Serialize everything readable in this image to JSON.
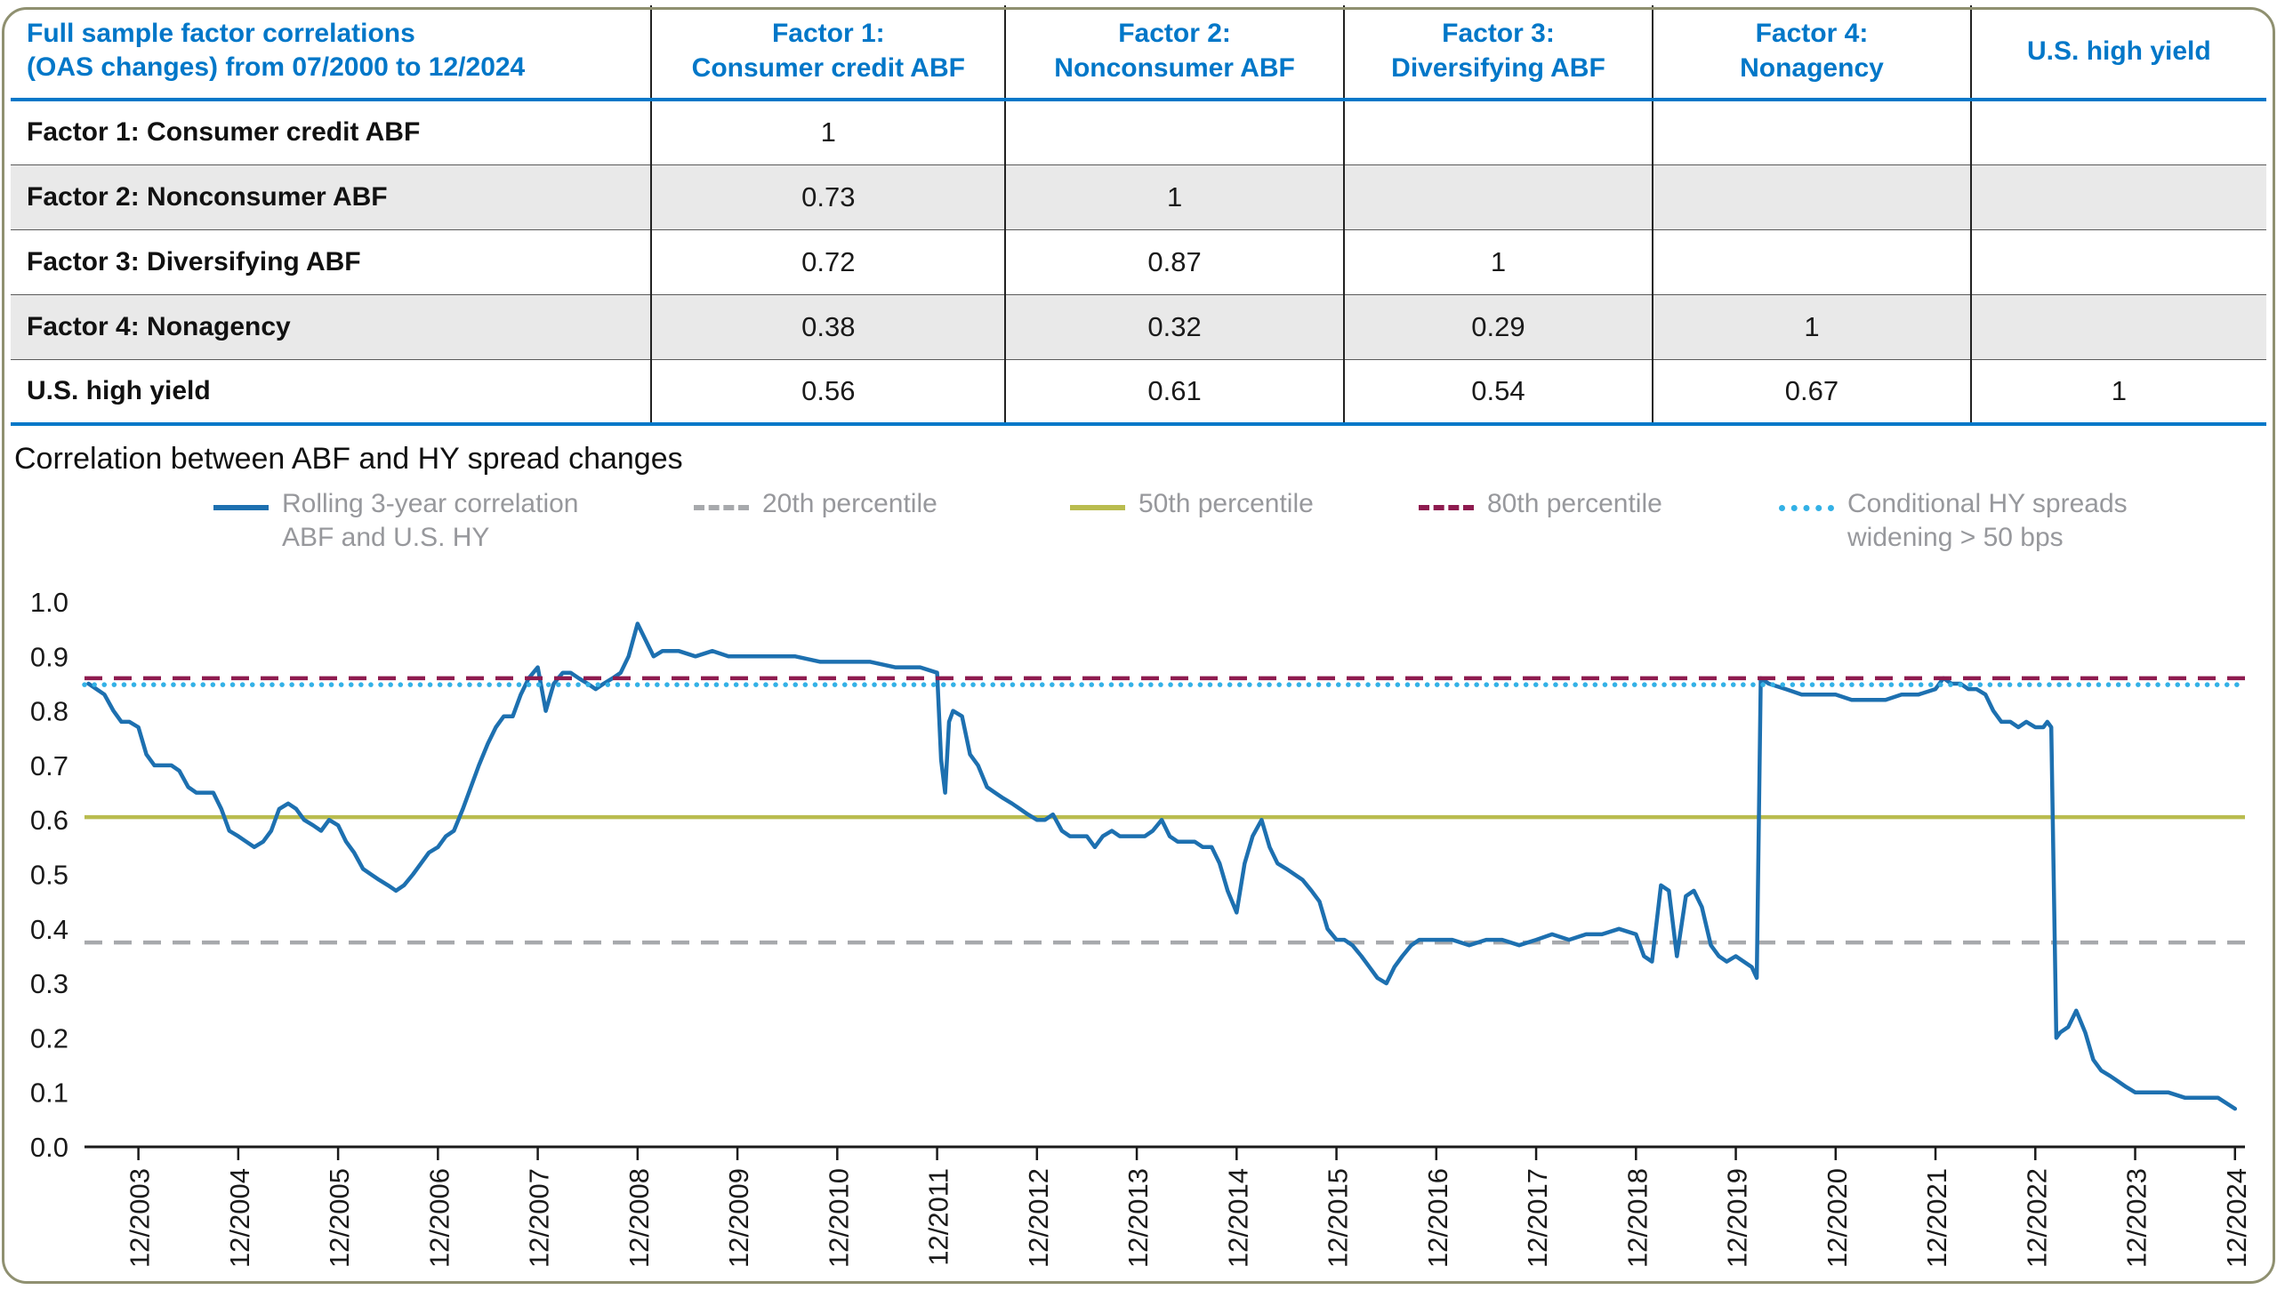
{
  "table": {
    "title_lines": [
      "Full sample factor correlations",
      "(OAS changes) from 07/2000 to 12/2024"
    ],
    "col_headers": [
      [
        "Factor 1:",
        "Consumer credit ABF"
      ],
      [
        "Factor 2:",
        "Nonconsumer ABF"
      ],
      [
        "Factor 3:",
        "Diversifying ABF"
      ],
      [
        "Factor 4:",
        "Nonagency"
      ],
      [
        "U.S. high yield"
      ]
    ],
    "rows": [
      {
        "label": "Factor 1: Consumer credit ABF",
        "values": [
          "1",
          "",
          "",
          "",
          ""
        ]
      },
      {
        "label": "Factor 2: Nonconsumer ABF",
        "values": [
          "0.73",
          "1",
          "",
          "",
          ""
        ]
      },
      {
        "label": "Factor 3: Diversifying ABF",
        "values": [
          "0.72",
          "0.87",
          "1",
          "",
          ""
        ]
      },
      {
        "label": "Factor 4: Nonagency",
        "values": [
          "0.38",
          "0.32",
          "0.29",
          "1",
          ""
        ]
      },
      {
        "label": "U.S. high yield",
        "values": [
          "0.56",
          "0.61",
          "0.54",
          "0.67",
          "1"
        ]
      }
    ],
    "header_text_color": "#0077C8",
    "alt_row_color": "#e9e9e9"
  },
  "legend": [
    {
      "label_lines": [
        "Rolling 3-year correlation",
        "ABF and U.S. HY"
      ],
      "style": "solid",
      "color": "#1d70b0"
    },
    {
      "label_lines": [
        "20th percentile"
      ],
      "style": "dashed",
      "color": "#a7a9ac"
    },
    {
      "label_lines": [
        "50th percentile"
      ],
      "style": "solid",
      "color": "#b9bc4f"
    },
    {
      "label_lines": [
        "80th percentile"
      ],
      "style": "dashed",
      "color": "#8e1b4f"
    },
    {
      "label_lines": [
        "Conditional HY spreads",
        "widening > 50 bps"
      ],
      "style": "dotted",
      "color": "#33b1e6"
    }
  ],
  "chart_data": {
    "type": "line",
    "title": "Correlation between ABF and HY spread changes",
    "xlabel": "",
    "ylabel": "",
    "ylim": [
      0,
      1
    ],
    "grid": false,
    "legend_position": "top",
    "y_tick_labels": [
      "0.0",
      "0.1",
      "0.2",
      "0.3",
      "0.4",
      "0.5",
      "0.6",
      "0.7",
      "0.8",
      "0.9",
      "1.0"
    ],
    "x_tick_labels": [
      "12/2003",
      "12/2004",
      "12/2005",
      "12/2006",
      "12/2007",
      "12/2008",
      "12/2009",
      "12/2010",
      "12/2011",
      "12/2012",
      "12/2013",
      "12/2014",
      "12/2015",
      "12/2016",
      "12/2017",
      "12/2018",
      "12/2019",
      "12/2020",
      "12/2021",
      "12/2022",
      "12/2023",
      "12/2024"
    ],
    "ref_lines": [
      {
        "name": "20th percentile",
        "value": 0.375,
        "style": "dashed",
        "color": "#a7a9ac"
      },
      {
        "name": "50th percentile",
        "value": 0.605,
        "style": "solid",
        "color": "#b9bc4f"
      },
      {
        "name": "80th percentile",
        "value": 0.86,
        "style": "dashed",
        "color": "#8e1b4f"
      },
      {
        "name": "Conditional HY spreads widening > 50 bps",
        "value": 0.848,
        "style": "dotted",
        "color": "#33b1e6"
      }
    ],
    "series": [
      {
        "name": "Rolling 3-year correlation ABF and U.S. HY",
        "color": "#1d70b0",
        "points": [
          [
            2003.42,
            0.85
          ],
          [
            2003.5,
            0.84
          ],
          [
            2003.58,
            0.83
          ],
          [
            2003.67,
            0.8
          ],
          [
            2003.75,
            0.78
          ],
          [
            2003.83,
            0.78
          ],
          [
            2003.92,
            0.77
          ],
          [
            2004.0,
            0.72
          ],
          [
            2004.08,
            0.7
          ],
          [
            2004.17,
            0.7
          ],
          [
            2004.25,
            0.7
          ],
          [
            2004.33,
            0.69
          ],
          [
            2004.42,
            0.66
          ],
          [
            2004.5,
            0.65
          ],
          [
            2004.58,
            0.65
          ],
          [
            2004.67,
            0.65
          ],
          [
            2004.75,
            0.62
          ],
          [
            2004.83,
            0.58
          ],
          [
            2004.92,
            0.57
          ],
          [
            2005.0,
            0.56
          ],
          [
            2005.08,
            0.55
          ],
          [
            2005.17,
            0.56
          ],
          [
            2005.25,
            0.58
          ],
          [
            2005.33,
            0.62
          ],
          [
            2005.42,
            0.63
          ],
          [
            2005.5,
            0.62
          ],
          [
            2005.58,
            0.6
          ],
          [
            2005.67,
            0.59
          ],
          [
            2005.75,
            0.58
          ],
          [
            2005.83,
            0.6
          ],
          [
            2005.92,
            0.59
          ],
          [
            2006.0,
            0.56
          ],
          [
            2006.08,
            0.54
          ],
          [
            2006.17,
            0.51
          ],
          [
            2006.25,
            0.5
          ],
          [
            2006.33,
            0.49
          ],
          [
            2006.42,
            0.48
          ],
          [
            2006.5,
            0.47
          ],
          [
            2006.58,
            0.48
          ],
          [
            2006.67,
            0.5
          ],
          [
            2006.75,
            0.52
          ],
          [
            2006.83,
            0.54
          ],
          [
            2006.92,
            0.55
          ],
          [
            2007.0,
            0.57
          ],
          [
            2007.08,
            0.58
          ],
          [
            2007.17,
            0.62
          ],
          [
            2007.25,
            0.66
          ],
          [
            2007.33,
            0.7
          ],
          [
            2007.42,
            0.74
          ],
          [
            2007.5,
            0.77
          ],
          [
            2007.58,
            0.79
          ],
          [
            2007.67,
            0.79
          ],
          [
            2007.75,
            0.83
          ],
          [
            2007.83,
            0.86
          ],
          [
            2007.92,
            0.88
          ],
          [
            2008.0,
            0.8
          ],
          [
            2008.08,
            0.85
          ],
          [
            2008.17,
            0.87
          ],
          [
            2008.25,
            0.87
          ],
          [
            2008.33,
            0.86
          ],
          [
            2008.42,
            0.85
          ],
          [
            2008.5,
            0.84
          ],
          [
            2008.58,
            0.85
          ],
          [
            2008.67,
            0.86
          ],
          [
            2008.75,
            0.87
          ],
          [
            2008.83,
            0.9
          ],
          [
            2008.92,
            0.96
          ],
          [
            2009.0,
            0.93
          ],
          [
            2009.08,
            0.9
          ],
          [
            2009.17,
            0.91
          ],
          [
            2009.33,
            0.91
          ],
          [
            2009.5,
            0.9
          ],
          [
            2009.67,
            0.91
          ],
          [
            2009.83,
            0.9
          ],
          [
            2010.0,
            0.9
          ],
          [
            2010.25,
            0.9
          ],
          [
            2010.5,
            0.9
          ],
          [
            2010.75,
            0.89
          ],
          [
            2011.0,
            0.89
          ],
          [
            2011.25,
            0.89
          ],
          [
            2011.5,
            0.88
          ],
          [
            2011.75,
            0.88
          ],
          [
            2011.92,
            0.87
          ],
          [
            2011.96,
            0.71
          ],
          [
            2012.0,
            0.65
          ],
          [
            2012.04,
            0.78
          ],
          [
            2012.08,
            0.8
          ],
          [
            2012.17,
            0.79
          ],
          [
            2012.25,
            0.72
          ],
          [
            2012.33,
            0.7
          ],
          [
            2012.42,
            0.66
          ],
          [
            2012.5,
            0.65
          ],
          [
            2012.58,
            0.64
          ],
          [
            2012.67,
            0.63
          ],
          [
            2012.75,
            0.62
          ],
          [
            2012.83,
            0.61
          ],
          [
            2012.92,
            0.6
          ],
          [
            2013.0,
            0.6
          ],
          [
            2013.08,
            0.61
          ],
          [
            2013.17,
            0.58
          ],
          [
            2013.25,
            0.57
          ],
          [
            2013.42,
            0.57
          ],
          [
            2013.5,
            0.55
          ],
          [
            2013.58,
            0.57
          ],
          [
            2013.67,
            0.58
          ],
          [
            2013.75,
            0.57
          ],
          [
            2013.92,
            0.57
          ],
          [
            2014.0,
            0.57
          ],
          [
            2014.08,
            0.58
          ],
          [
            2014.17,
            0.6
          ],
          [
            2014.25,
            0.57
          ],
          [
            2014.33,
            0.56
          ],
          [
            2014.5,
            0.56
          ],
          [
            2014.58,
            0.55
          ],
          [
            2014.67,
            0.55
          ],
          [
            2014.75,
            0.52
          ],
          [
            2014.83,
            0.47
          ],
          [
            2014.92,
            0.43
          ],
          [
            2015.0,
            0.52
          ],
          [
            2015.08,
            0.57
          ],
          [
            2015.17,
            0.6
          ],
          [
            2015.25,
            0.55
          ],
          [
            2015.33,
            0.52
          ],
          [
            2015.42,
            0.51
          ],
          [
            2015.5,
            0.5
          ],
          [
            2015.58,
            0.49
          ],
          [
            2015.67,
            0.47
          ],
          [
            2015.75,
            0.45
          ],
          [
            2015.83,
            0.4
          ],
          [
            2015.92,
            0.38
          ],
          [
            2016.0,
            0.38
          ],
          [
            2016.08,
            0.37
          ],
          [
            2016.17,
            0.35
          ],
          [
            2016.25,
            0.33
          ],
          [
            2016.33,
            0.31
          ],
          [
            2016.42,
            0.3
          ],
          [
            2016.5,
            0.33
          ],
          [
            2016.58,
            0.35
          ],
          [
            2016.67,
            0.37
          ],
          [
            2016.75,
            0.38
          ],
          [
            2016.92,
            0.38
          ],
          [
            2017.08,
            0.38
          ],
          [
            2017.25,
            0.37
          ],
          [
            2017.42,
            0.38
          ],
          [
            2017.58,
            0.38
          ],
          [
            2017.75,
            0.37
          ],
          [
            2017.92,
            0.38
          ],
          [
            2018.08,
            0.39
          ],
          [
            2018.25,
            0.38
          ],
          [
            2018.42,
            0.39
          ],
          [
            2018.58,
            0.39
          ],
          [
            2018.75,
            0.4
          ],
          [
            2018.92,
            0.39
          ],
          [
            2019.0,
            0.35
          ],
          [
            2019.08,
            0.34
          ],
          [
            2019.17,
            0.48
          ],
          [
            2019.25,
            0.47
          ],
          [
            2019.33,
            0.35
          ],
          [
            2019.42,
            0.46
          ],
          [
            2019.5,
            0.47
          ],
          [
            2019.58,
            0.44
          ],
          [
            2019.67,
            0.37
          ],
          [
            2019.75,
            0.35
          ],
          [
            2019.83,
            0.34
          ],
          [
            2019.92,
            0.35
          ],
          [
            2020.0,
            0.34
          ],
          [
            2020.08,
            0.33
          ],
          [
            2020.13,
            0.31
          ],
          [
            2020.17,
            0.86
          ],
          [
            2020.25,
            0.85
          ],
          [
            2020.42,
            0.84
          ],
          [
            2020.58,
            0.83
          ],
          [
            2020.75,
            0.83
          ],
          [
            2020.92,
            0.83
          ],
          [
            2021.08,
            0.82
          ],
          [
            2021.25,
            0.82
          ],
          [
            2021.42,
            0.82
          ],
          [
            2021.58,
            0.83
          ],
          [
            2021.75,
            0.83
          ],
          [
            2021.92,
            0.84
          ],
          [
            2022.0,
            0.86
          ],
          [
            2022.08,
            0.85
          ],
          [
            2022.17,
            0.85
          ],
          [
            2022.25,
            0.84
          ],
          [
            2022.33,
            0.84
          ],
          [
            2022.42,
            0.83
          ],
          [
            2022.5,
            0.8
          ],
          [
            2022.58,
            0.78
          ],
          [
            2022.67,
            0.78
          ],
          [
            2022.75,
            0.77
          ],
          [
            2022.83,
            0.78
          ],
          [
            2022.92,
            0.77
          ],
          [
            2023.0,
            0.77
          ],
          [
            2023.04,
            0.78
          ],
          [
            2023.08,
            0.77
          ],
          [
            2023.13,
            0.2
          ],
          [
            2023.17,
            0.21
          ],
          [
            2023.25,
            0.22
          ],
          [
            2023.33,
            0.25
          ],
          [
            2023.42,
            0.21
          ],
          [
            2023.5,
            0.16
          ],
          [
            2023.58,
            0.14
          ],
          [
            2023.67,
            0.13
          ],
          [
            2023.75,
            0.12
          ],
          [
            2023.83,
            0.11
          ],
          [
            2023.92,
            0.1
          ],
          [
            2024.08,
            0.1
          ],
          [
            2024.25,
            0.1
          ],
          [
            2024.42,
            0.09
          ],
          [
            2024.58,
            0.09
          ],
          [
            2024.75,
            0.09
          ],
          [
            2024.92,
            0.07
          ]
        ]
      }
    ]
  }
}
